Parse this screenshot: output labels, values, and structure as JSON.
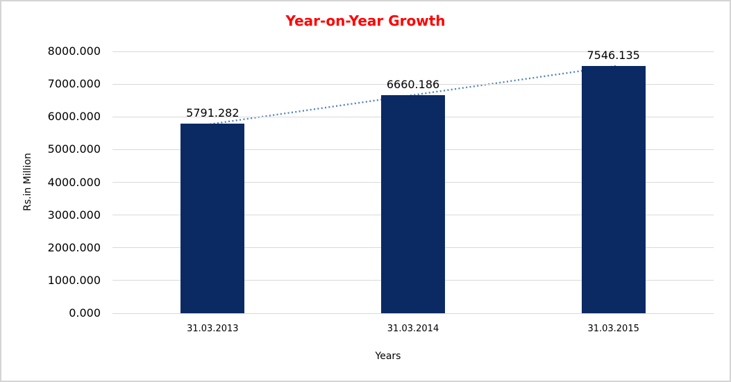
{
  "window": {
    "background_color": "#FFFFFF",
    "border_color": "#D4D4D4"
  },
  "chart_data": {
    "type": "bar",
    "title": "Year-on-Year Growth",
    "title_color": "#FF0000",
    "categories": [
      "31.03.2013",
      "31.03.2014",
      "31.03.2015"
    ],
    "values": [
      5791.282,
      6660.186,
      7546.135
    ],
    "data_labels": [
      "5791.282",
      "6660.186",
      "7546.135"
    ],
    "xlabel": "Years",
    "ylabel": "Rs.in Million",
    "ylim": [
      0,
      8000
    ],
    "ytick_interval": 1000,
    "ytick_labels": [
      "0.000",
      "1000.000",
      "2000.000",
      "3000.000",
      "4000.000",
      "5000.000",
      "6000.000",
      "7000.000",
      "8000.000"
    ],
    "grid": true,
    "gridline_color": "#D9D9D9",
    "legend_position": "none",
    "bar_color": "#0B2A64",
    "trendline": {
      "type": "linear",
      "style": "dotted",
      "color": "#4F81BD"
    }
  }
}
